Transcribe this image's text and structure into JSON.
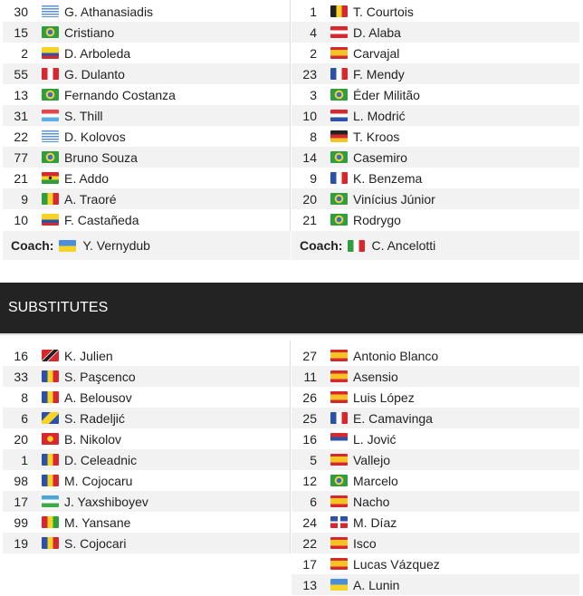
{
  "home": {
    "players": [
      {
        "num": "30",
        "flag": "GRE",
        "name": "G. Athanasiadis"
      },
      {
        "num": "15",
        "flag": "BRA",
        "name": "Cristiano"
      },
      {
        "num": "2",
        "flag": "COL",
        "name": "D. Arboleda"
      },
      {
        "num": "55",
        "flag": "PER",
        "name": "G. Dulanto"
      },
      {
        "num": "13",
        "flag": "BRA",
        "name": "Fernando Costanza"
      },
      {
        "num": "31",
        "flag": "LUX",
        "name": "S. Thill"
      },
      {
        "num": "22",
        "flag": "GRE",
        "name": "D. Kolovos"
      },
      {
        "num": "77",
        "flag": "BRA",
        "name": "Bruno Souza"
      },
      {
        "num": "21",
        "flag": "GHA",
        "name": "E. Addo"
      },
      {
        "num": "9",
        "flag": "MLI",
        "name": "A. Traoré"
      },
      {
        "num": "10",
        "flag": "COL",
        "name": "F. Castañeda"
      }
    ],
    "coach_label": "Coach:",
    "coach": {
      "flag": "UKR",
      "name": "Y. Vernydub"
    },
    "subs": [
      {
        "num": "16",
        "flag": "TRI",
        "name": "K. Julien"
      },
      {
        "num": "33",
        "flag": "MDA",
        "name": "S. Paşcenco"
      },
      {
        "num": "8",
        "flag": "MDA",
        "name": "A. Belousov"
      },
      {
        "num": "6",
        "flag": "BIH",
        "name": "S. Radeljić"
      },
      {
        "num": "20",
        "flag": "MKD",
        "name": "B. Nikolov"
      },
      {
        "num": "1",
        "flag": "MDA",
        "name": "D. Celeadnic"
      },
      {
        "num": "98",
        "flag": "MDA",
        "name": "M. Cojocaru"
      },
      {
        "num": "17",
        "flag": "UZB",
        "name": "J. Yaxshiboyev"
      },
      {
        "num": "99",
        "flag": "GUI",
        "name": "M. Yansane"
      },
      {
        "num": "19",
        "flag": "MDA",
        "name": "S. Cojocari"
      }
    ]
  },
  "away": {
    "players": [
      {
        "num": "1",
        "flag": "BEL",
        "name": "T. Courtois"
      },
      {
        "num": "4",
        "flag": "AUT",
        "name": "D. Alaba"
      },
      {
        "num": "2",
        "flag": "ESP",
        "name": "Carvajal"
      },
      {
        "num": "23",
        "flag": "FRA",
        "name": "F. Mendy"
      },
      {
        "num": "3",
        "flag": "BRA",
        "name": "Éder Militão"
      },
      {
        "num": "10",
        "flag": "CRO",
        "name": "L. Modrić"
      },
      {
        "num": "8",
        "flag": "GER",
        "name": "T. Kroos"
      },
      {
        "num": "14",
        "flag": "BRA",
        "name": "Casemiro"
      },
      {
        "num": "9",
        "flag": "FRA",
        "name": "K. Benzema"
      },
      {
        "num": "20",
        "flag": "BRA",
        "name": "Vinícius Júnior"
      },
      {
        "num": "21",
        "flag": "BRA",
        "name": "Rodrygo"
      }
    ],
    "coach_label": "Coach:",
    "coach": {
      "flag": "ITA",
      "name": "C. Ancelotti"
    },
    "subs": [
      {
        "num": "27",
        "flag": "ESP",
        "name": "Antonio Blanco"
      },
      {
        "num": "11",
        "flag": "ESP",
        "name": "Asensio"
      },
      {
        "num": "26",
        "flag": "ESP",
        "name": "Luis López"
      },
      {
        "num": "25",
        "flag": "FRA",
        "name": "E. Camavinga"
      },
      {
        "num": "16",
        "flag": "SRB",
        "name": "L. Jović"
      },
      {
        "num": "5",
        "flag": "ESP",
        "name": "Vallejo"
      },
      {
        "num": "12",
        "flag": "BRA",
        "name": "Marcelo"
      },
      {
        "num": "6",
        "flag": "ESP",
        "name": "Nacho"
      },
      {
        "num": "24",
        "flag": "DOM",
        "name": "M. Díaz"
      },
      {
        "num": "22",
        "flag": "ESP",
        "name": "Isco"
      },
      {
        "num": "17",
        "flag": "ESP",
        "name": "Lucas Vázquez"
      },
      {
        "num": "13",
        "flag": "UKR",
        "name": "A. Lunin"
      }
    ]
  },
  "substitutes_title": "SUBSTITUTES"
}
